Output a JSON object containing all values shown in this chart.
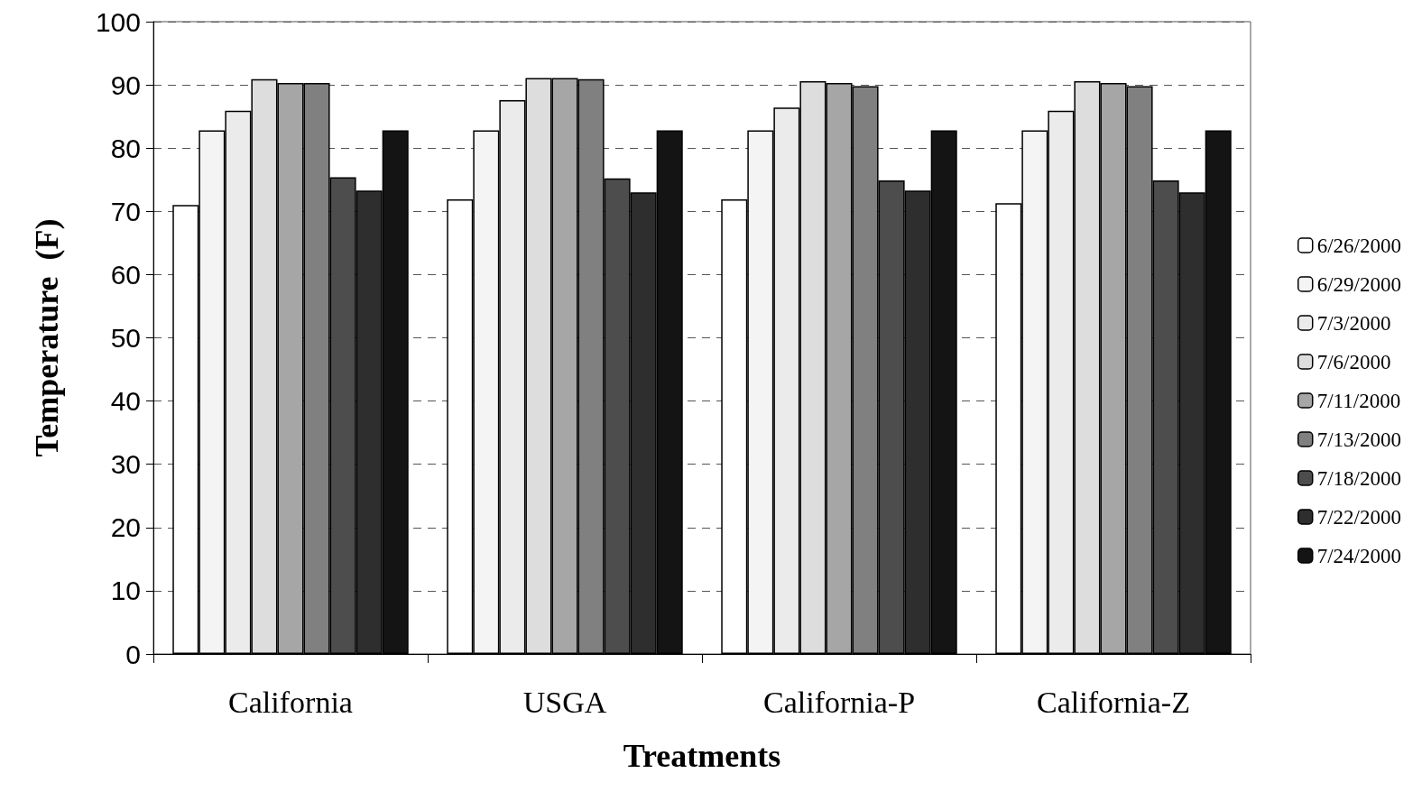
{
  "chart_data": {
    "type": "bar",
    "xlabel": "Treatments",
    "ylabel": "Temperature  (F)",
    "categories": [
      "California",
      "USGA",
      "California-P",
      "California-Z"
    ],
    "series": [
      {
        "name": "6/26/2000",
        "color": "#ffffff",
        "values": [
          71.0,
          71.9,
          71.9,
          71.3
        ]
      },
      {
        "name": "6/29/2000",
        "color": "#f4f4f4",
        "values": [
          82.8,
          82.8,
          82.8,
          82.8
        ]
      },
      {
        "name": "7/3/2000",
        "color": "#ebebeb",
        "values": [
          85.9,
          87.6,
          86.4,
          85.9
        ]
      },
      {
        "name": "7/6/2000",
        "color": "#dddddd",
        "values": [
          90.9,
          91.1,
          90.6,
          90.6
        ]
      },
      {
        "name": "7/11/2000",
        "color": "#a6a6a6",
        "values": [
          90.3,
          91.1,
          90.3,
          90.3
        ]
      },
      {
        "name": "7/13/2000",
        "color": "#808080",
        "values": [
          90.3,
          90.9,
          89.8,
          89.8
        ]
      },
      {
        "name": "7/18/2000",
        "color": "#4d4d4d",
        "values": [
          75.4,
          75.2,
          74.9,
          74.9
        ]
      },
      {
        "name": "7/22/2000",
        "color": "#2e2e2e",
        "values": [
          73.3,
          73.0,
          73.3,
          73.0
        ]
      },
      {
        "name": "7/24/2000",
        "color": "#141414",
        "values": [
          82.8,
          82.8,
          82.8,
          82.8
        ]
      }
    ],
    "ylim": [
      0,
      100
    ],
    "yticks": [
      0,
      10,
      20,
      30,
      40,
      50,
      60,
      70,
      80,
      90,
      100
    ],
    "grid": "y",
    "legend": "right"
  }
}
